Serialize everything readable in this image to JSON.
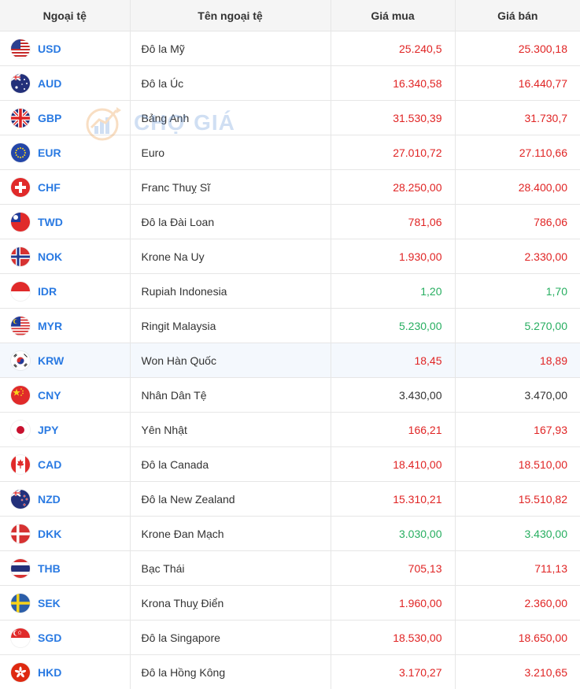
{
  "header": {
    "col_code": "Ngoại tệ",
    "col_name": "Tên ngoại tệ",
    "col_buy": "Giá mua",
    "col_sell": "Giá bán"
  },
  "watermark": {
    "text": "CHỢ GIÁ"
  },
  "colors": {
    "up": "#e02424",
    "neutral": "#333333",
    "down": "#27ae60",
    "code": "#2a7ae2"
  },
  "rows": [
    {
      "code": "USD",
      "name": "Đô la Mỹ",
      "buy": "25.240,5",
      "sell": "25.300,18",
      "trend": "up",
      "flag": "us-flag-icon"
    },
    {
      "code": "AUD",
      "name": "Đô la Úc",
      "buy": "16.340,58",
      "sell": "16.440,77",
      "trend": "up",
      "flag": "au-flag-icon"
    },
    {
      "code": "GBP",
      "name": "Bảng Anh",
      "buy": "31.530,39",
      "sell": "31.730,7",
      "trend": "up",
      "flag": "gb-flag-icon"
    },
    {
      "code": "EUR",
      "name": "Euro",
      "buy": "27.010,72",
      "sell": "27.110,66",
      "trend": "up",
      "flag": "eu-flag-icon"
    },
    {
      "code": "CHF",
      "name": "Franc Thuỵ Sĩ",
      "buy": "28.250,00",
      "sell": "28.400,00",
      "trend": "up",
      "flag": "ch-flag-icon"
    },
    {
      "code": "TWD",
      "name": "Đô la Đài Loan",
      "buy": "781,06",
      "sell": "786,06",
      "trend": "up",
      "flag": "tw-flag-icon"
    },
    {
      "code": "NOK",
      "name": "Krone Na Uy",
      "buy": "1.930,00",
      "sell": "2.330,00",
      "trend": "up",
      "flag": "no-flag-icon"
    },
    {
      "code": "IDR",
      "name": "Rupiah Indonesia",
      "buy": "1,20",
      "sell": "1,70",
      "trend": "down",
      "flag": "id-flag-icon"
    },
    {
      "code": "MYR",
      "name": "Ringit Malaysia",
      "buy": "5.230,00",
      "sell": "5.270,00",
      "trend": "down",
      "flag": "my-flag-icon"
    },
    {
      "code": "KRW",
      "name": "Won Hàn Quốc",
      "buy": "18,45",
      "sell": "18,89",
      "trend": "up",
      "flag": "kr-flag-icon",
      "highlight": true
    },
    {
      "code": "CNY",
      "name": "Nhân Dân Tệ",
      "buy": "3.430,00",
      "sell": "3.470,00",
      "trend": "neutral",
      "flag": "cn-flag-icon"
    },
    {
      "code": "JPY",
      "name": "Yên Nhật",
      "buy": "166,21",
      "sell": "167,93",
      "trend": "up",
      "flag": "jp-flag-icon"
    },
    {
      "code": "CAD",
      "name": "Đô la Canada",
      "buy": "18.410,00",
      "sell": "18.510,00",
      "trend": "up",
      "flag": "ca-flag-icon"
    },
    {
      "code": "NZD",
      "name": "Đô la New Zealand",
      "buy": "15.310,21",
      "sell": "15.510,82",
      "trend": "up",
      "flag": "nz-flag-icon"
    },
    {
      "code": "DKK",
      "name": "Krone Đan Mạch",
      "buy": "3.030,00",
      "sell": "3.430,00",
      "trend": "down",
      "flag": "dk-flag-icon"
    },
    {
      "code": "THB",
      "name": "Bạc Thái",
      "buy": "705,13",
      "sell": "711,13",
      "trend": "up",
      "flag": "th-flag-icon"
    },
    {
      "code": "SEK",
      "name": "Krona Thuỵ Điển",
      "buy": "1.960,00",
      "sell": "2.360,00",
      "trend": "up",
      "flag": "se-flag-icon"
    },
    {
      "code": "SGD",
      "name": "Đô la Singapore",
      "buy": "18.530,00",
      "sell": "18.650,00",
      "trend": "up",
      "flag": "sg-flag-icon"
    },
    {
      "code": "HKD",
      "name": "Đô la Hồng Kông",
      "buy": "3.170,27",
      "sell": "3.210,65",
      "trend": "up",
      "flag": "hk-flag-icon"
    }
  ]
}
